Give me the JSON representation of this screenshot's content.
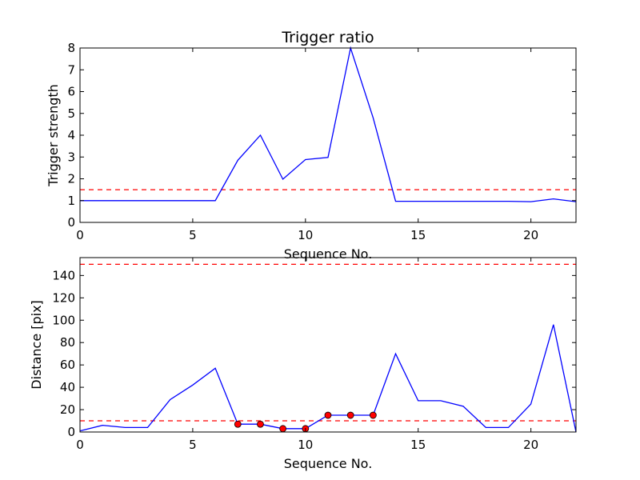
{
  "chart_data": [
    {
      "type": "line",
      "title": "Trigger ratio",
      "xlabel": "Sequence No.",
      "ylabel": "Trigger strength",
      "xlim": [
        0,
        22
      ],
      "ylim": [
        0,
        8
      ],
      "xticks": [
        0,
        5,
        10,
        15,
        20
      ],
      "yticks": [
        0,
        1,
        2,
        3,
        4,
        5,
        6,
        7,
        8
      ],
      "grid": false,
      "series": [
        {
          "color": "#0000ff",
          "x": [
            0,
            1,
            2,
            3,
            4,
            5,
            6,
            7,
            8,
            9,
            10,
            11,
            12,
            13,
            14,
            15,
            16,
            17,
            18,
            19,
            20,
            21,
            22
          ],
          "y": [
            1.0,
            1.0,
            1.0,
            1.0,
            1.0,
            1.0,
            1.0,
            2.85,
            4.0,
            1.98,
            2.88,
            2.98,
            8.0,
            4.8,
            0.97,
            0.97,
            0.97,
            0.97,
            0.97,
            0.97,
            0.95,
            1.08,
            0.95
          ]
        }
      ],
      "threshold_lines": [
        {
          "y": 1.5,
          "color": "#ff0000",
          "style": "dashed"
        }
      ]
    },
    {
      "type": "line",
      "title": "",
      "xlabel": "Sequence No.",
      "ylabel": "Distance [pix]",
      "xlim": [
        0,
        22
      ],
      "ylim": [
        0,
        156
      ],
      "xticks": [
        0,
        5,
        10,
        15,
        20
      ],
      "yticks": [
        0,
        20,
        40,
        60,
        80,
        100,
        120,
        140
      ],
      "grid": false,
      "series": [
        {
          "color": "#0000ff",
          "x": [
            0,
            1,
            2,
            3,
            4,
            5,
            6,
            7,
            8,
            9,
            10,
            11,
            12,
            13,
            14,
            15,
            16,
            17,
            18,
            19,
            20,
            21,
            22
          ],
          "y": [
            1,
            6,
            4,
            4,
            29,
            42,
            57,
            7,
            7,
            3,
            3,
            15,
            15,
            15,
            70,
            28,
            28,
            23,
            4,
            4,
            25,
            96,
            0
          ]
        }
      ],
      "markers": {
        "color": "#ff0000",
        "x": [
          7,
          8,
          9,
          10,
          11,
          12,
          13
        ],
        "y": [
          7,
          7,
          3,
          3,
          15,
          15,
          15
        ]
      },
      "threshold_lines": [
        {
          "y": 150,
          "color": "#ff0000",
          "style": "dashed"
        },
        {
          "y": 10,
          "color": "#ff0000",
          "style": "dashed"
        }
      ]
    }
  ]
}
